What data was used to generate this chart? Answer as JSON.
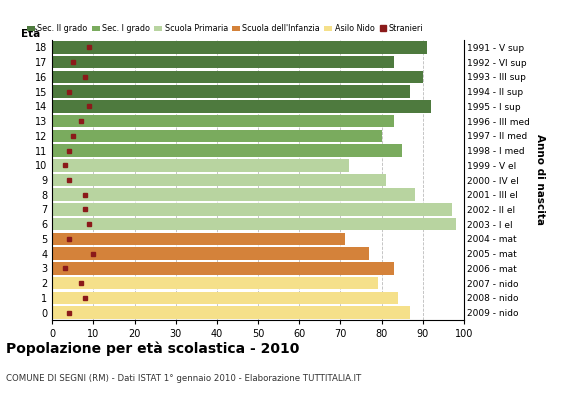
{
  "ages": [
    18,
    17,
    16,
    15,
    14,
    13,
    12,
    11,
    10,
    9,
    8,
    7,
    6,
    5,
    4,
    3,
    2,
    1,
    0
  ],
  "years": [
    "1991 - V sup",
    "1992 - VI sup",
    "1993 - III sup",
    "1994 - II sup",
    "1995 - I sup",
    "1996 - III med",
    "1997 - II med",
    "1998 - I med",
    "1999 - V el",
    "2000 - IV el",
    "2001 - III el",
    "2002 - II el",
    "2003 - I el",
    "2004 - mat",
    "2005 - mat",
    "2006 - mat",
    "2007 - nido",
    "2008 - nido",
    "2009 - nido"
  ],
  "values": [
    91,
    83,
    90,
    87,
    92,
    83,
    80,
    85,
    72,
    81,
    88,
    97,
    98,
    71,
    77,
    83,
    79,
    84,
    87
  ],
  "stranieri": [
    9,
    5,
    8,
    4,
    9,
    7,
    5,
    4,
    3,
    4,
    8,
    8,
    9,
    4,
    10,
    3,
    7,
    8,
    4
  ],
  "colors": {
    "sec2": "#4e7a3e",
    "sec1": "#7aab5e",
    "primaria": "#b8d4a0",
    "infanzia": "#d4823a",
    "nido": "#f5e08a",
    "stranieri": "#8b1a1a"
  },
  "bar_colors_by_age": {
    "18": "#4e7a3e",
    "17": "#4e7a3e",
    "16": "#4e7a3e",
    "15": "#4e7a3e",
    "14": "#4e7a3e",
    "13": "#7aab5e",
    "12": "#7aab5e",
    "11": "#7aab5e",
    "10": "#b8d4a0",
    "9": "#b8d4a0",
    "8": "#b8d4a0",
    "7": "#b8d4a0",
    "6": "#b8d4a0",
    "5": "#d4823a",
    "4": "#d4823a",
    "3": "#d4823a",
    "2": "#f5e08a",
    "1": "#f5e08a",
    "0": "#f5e08a"
  },
  "title": "Popolazione per età scolastica - 2010",
  "subtitle": "COMUNE DI SEGNI (RM) - Dati ISTAT 1° gennaio 2010 - Elaborazione TUTTITALIA.IT",
  "legend_labels": [
    "Sec. II grado",
    "Sec. I grado",
    "Scuola Primaria",
    "Scuola dell'Infanzia",
    "Asilo Nido",
    "Stranieri"
  ],
  "xlim": [
    0,
    100
  ],
  "xticks": [
    0,
    10,
    20,
    30,
    40,
    50,
    60,
    70,
    80,
    90,
    100
  ],
  "ylabel_left": "Età",
  "ylabel_right": "Anno di nascita",
  "background_color": "#ffffff",
  "grid_color": "#bbbbbb"
}
